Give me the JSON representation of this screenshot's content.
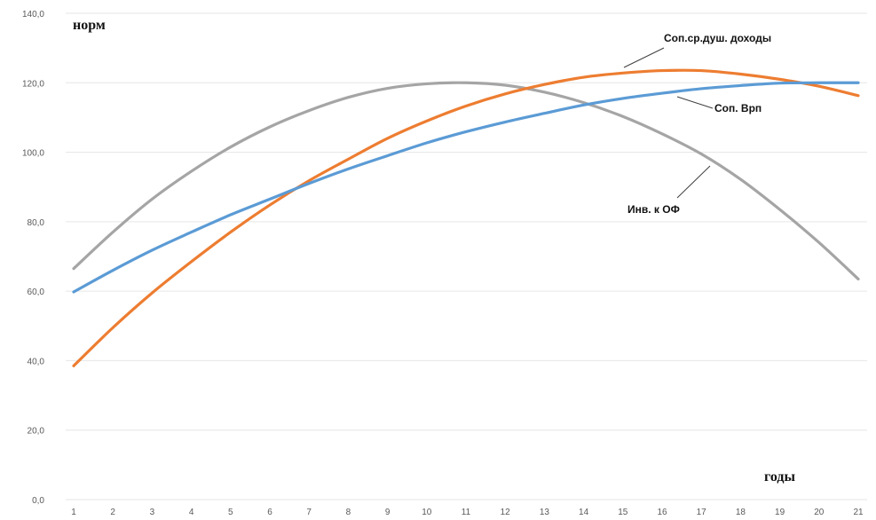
{
  "chart_data": {
    "type": "line",
    "title": "",
    "ylabel": "норм",
    "xlabel": "годы",
    "ylim": [
      0,
      140
    ],
    "yticks": [
      0,
      20,
      40,
      60,
      80,
      100,
      120,
      140
    ],
    "ytick_labels": [
      "0,0",
      "20,0",
      "40,0",
      "60,0",
      "80,0",
      "100,0",
      "120,0",
      "140,0"
    ],
    "categories": [
      "1",
      "2",
      "3",
      "4",
      "5",
      "6",
      "7",
      "8",
      "9",
      "10",
      "11",
      "12",
      "13",
      "14",
      "15",
      "16",
      "17",
      "18",
      "19",
      "20",
      "21"
    ],
    "grid": true,
    "series": [
      {
        "name": "Инв. к ОФ",
        "color": "#a5a5a5",
        "values": [
          66.5,
          77.0,
          86.5,
          94.5,
          101.5,
          107.3,
          112.0,
          115.8,
          118.4,
          119.7,
          120.0,
          119.3,
          117.3,
          114.3,
          110.3,
          105.3,
          99.5,
          92.2,
          83.5,
          74.0,
          63.5
        ]
      },
      {
        "name": "Соп.ср.душ. доходы",
        "color": "#ed7d31",
        "values": [
          38.5,
          49.5,
          59.5,
          68.5,
          77.0,
          84.8,
          91.8,
          98.0,
          104.0,
          109.0,
          113.3,
          116.8,
          119.5,
          121.6,
          122.8,
          123.5,
          123.5,
          122.5,
          121.0,
          119.0,
          116.3
        ]
      },
      {
        "name": "Соп. Врп",
        "color": "#5b9bd5",
        "values": [
          59.8,
          66.0,
          71.8,
          77.0,
          82.0,
          86.5,
          91.0,
          95.2,
          99.0,
          102.7,
          105.9,
          108.7,
          111.2,
          113.6,
          115.5,
          117.0,
          118.3,
          119.2,
          119.9,
          120.0,
          120.0
        ]
      }
    ]
  }
}
